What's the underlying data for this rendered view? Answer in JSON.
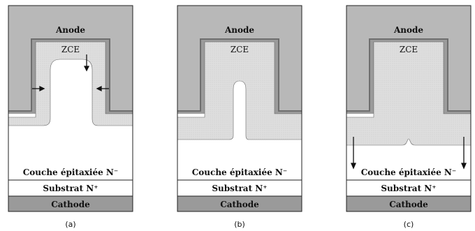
{
  "panels": [
    {
      "id": "a",
      "anode": "Anode",
      "zce": "ZCE",
      "epi": "Couche épitaxiée N⁻",
      "substrate": "Substrat N⁺",
      "cathode": "Cathode",
      "caption": "(a)"
    },
    {
      "id": "b",
      "anode": "Anode",
      "zce": "ZCE",
      "epi": "Couche épitaxiée N⁻",
      "substrate": "Substrat N⁺",
      "cathode": "Cathode",
      "caption": "(b)"
    },
    {
      "id": "c",
      "anode": "Anode",
      "zce": "ZCE",
      "epi": "Couche épitaxiée N⁻",
      "substrate": "Substrat N⁺",
      "cathode": "Cathode",
      "caption": "(c)"
    }
  ],
  "colors": {
    "anode_fill": "#b8b8b8",
    "cathode_fill": "#9a9a9a",
    "oxide_fill": "#6e6e6e",
    "zce_fill": "#dcdcdc",
    "epi_fill": "#ffffff",
    "outline": "#222222"
  }
}
